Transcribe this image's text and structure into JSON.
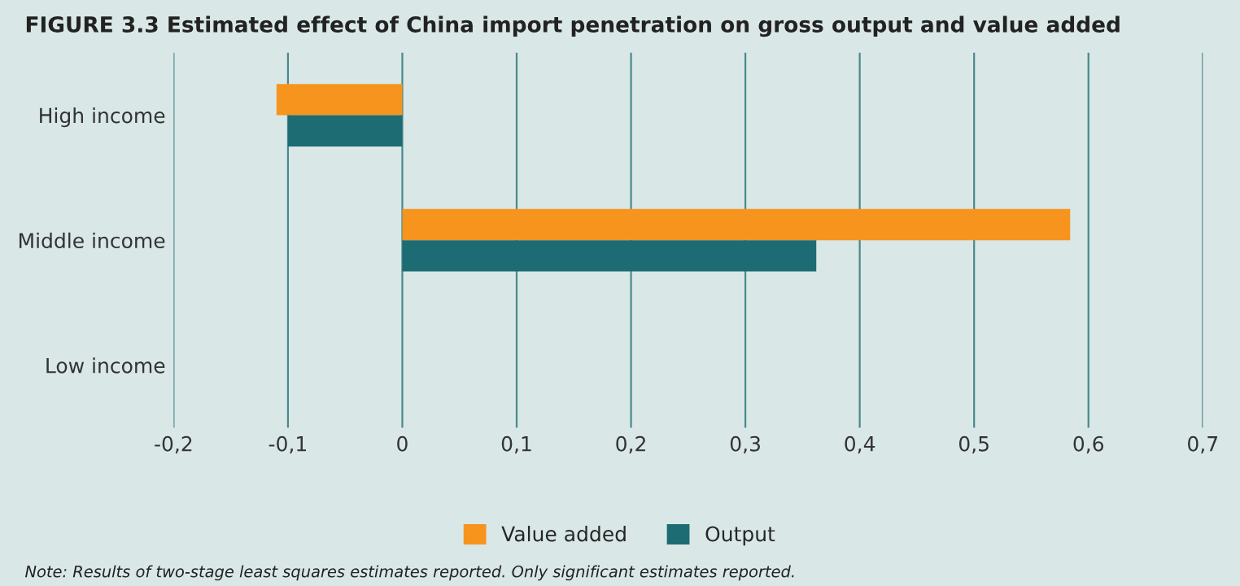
{
  "chart_data": {
    "type": "bar",
    "orientation": "horizontal",
    "title": "FIGURE 3.3 Estimated effect of China import penetration on gross output and value added",
    "categories": [
      "High income",
      "Middle income",
      "Low income"
    ],
    "series": [
      {
        "name": "Value added",
        "color": "#f7941d",
        "values": [
          -0.11,
          0.584,
          null
        ]
      },
      {
        "name": "Output",
        "color": "#1d6b73",
        "values": [
          -0.1,
          0.362,
          null
        ]
      }
    ],
    "xlim": [
      -0.2,
      0.7
    ],
    "xticks": [
      {
        "value": -0.2,
        "label": "-0,2"
      },
      {
        "value": -0.1,
        "label": "-0,1"
      },
      0,
      {
        "value": 0.1,
        "label": "0,1"
      },
      {
        "value": 0.2,
        "label": "0,2"
      },
      {
        "value": 0.3,
        "label": "0,3"
      },
      {
        "value": 0.4,
        "label": "0,4"
      },
      {
        "value": 0.5,
        "label": "0,5"
      },
      {
        "value": 0.6,
        "label": "0,6"
      },
      {
        "value": 0.7,
        "label": "0,7"
      }
    ],
    "grid": "x",
    "legend": "bottom",
    "annotations": [
      "Note: Results of two-stage least squares estimates reported. Only significant estimates reported."
    ]
  }
}
